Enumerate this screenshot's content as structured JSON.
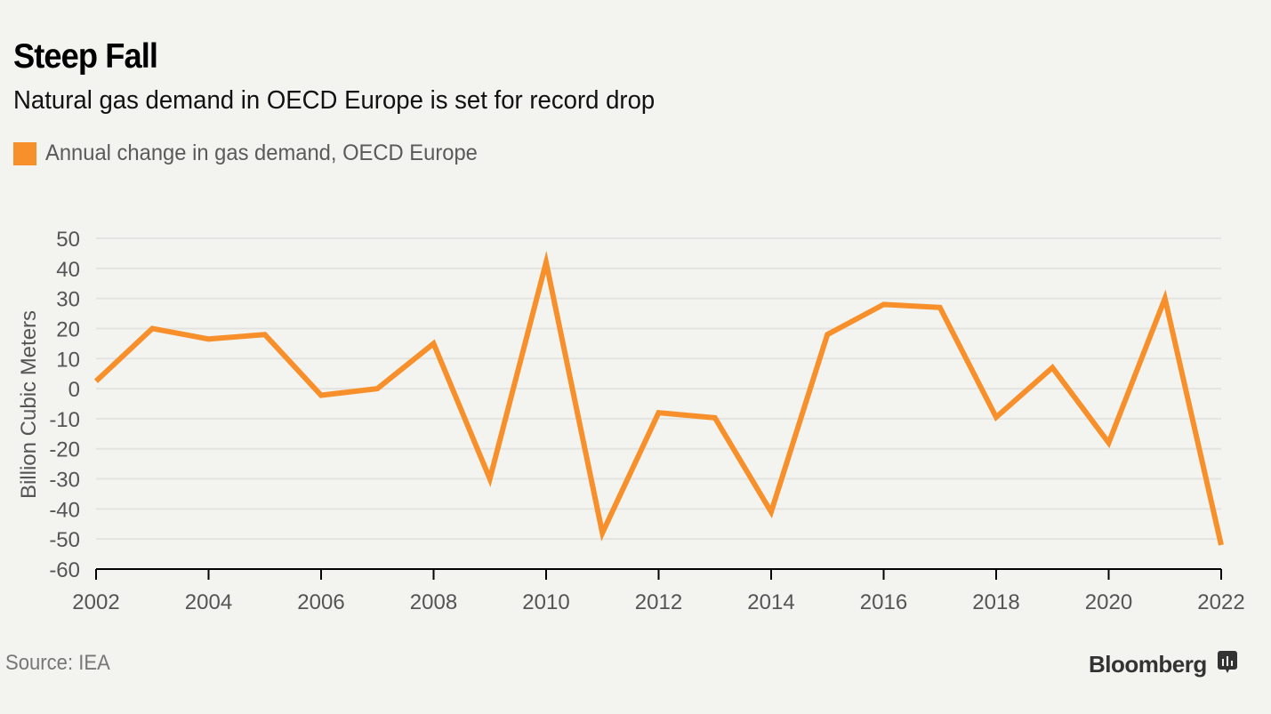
{
  "header": {
    "title": "Steep Fall",
    "subtitle": "Natural gas demand in OECD Europe is set for record drop"
  },
  "legend": {
    "label": "Annual change in gas demand, OECD Europe",
    "color": "#f7902b"
  },
  "footer": {
    "source": "Source: IEA",
    "brand": "Bloomberg",
    "brand_icon": "bloomberg-chart-icon"
  },
  "colors": {
    "background": "#f3f3ef",
    "line": "#f7902b",
    "grid": "#e3e3e1",
    "axis": "#000000",
    "tick_text": "#555555"
  },
  "chart_data": {
    "type": "line",
    "title": "Steep Fall",
    "subtitle": "Natural gas demand in OECD Europe is set for record drop",
    "xlabel": "",
    "ylabel": "Billion Cubic Meters",
    "x": [
      2002,
      2003,
      2004,
      2005,
      2006,
      2007,
      2008,
      2009,
      2010,
      2011,
      2012,
      2013,
      2014,
      2015,
      2016,
      2017,
      2018,
      2019,
      2020,
      2021,
      2022
    ],
    "series": [
      {
        "name": "Annual change in gas demand, OECD Europe",
        "values": [
          2.5,
          20,
          16.5,
          18,
          -2.2,
          0,
          15,
          -30,
          42,
          -48,
          -8,
          -9.7,
          -41,
          18,
          28,
          27,
          -9.5,
          7,
          -18,
          30,
          -52
        ]
      }
    ],
    "xlim": [
      2002,
      2022
    ],
    "ylim": [
      -60,
      50
    ],
    "x_ticks": [
      "2002",
      "2004",
      "2006",
      "2008",
      "2010",
      "2012",
      "2014",
      "2016",
      "2018",
      "2020",
      "2022"
    ],
    "y_ticks": [
      "50",
      "40",
      "30",
      "20",
      "10",
      "0",
      "-10",
      "-20",
      "-30",
      "-40",
      "-50",
      "-60"
    ],
    "grid": true,
    "legend_position": "top-left"
  }
}
